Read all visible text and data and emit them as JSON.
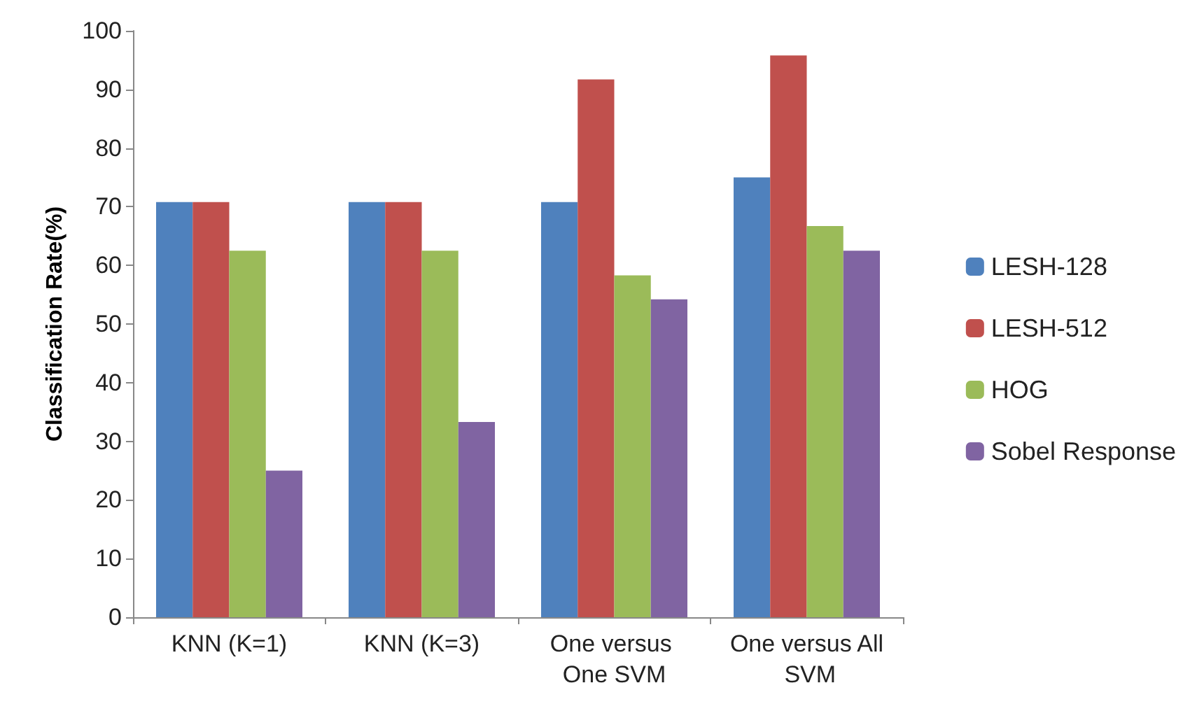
{
  "chart_data": {
    "type": "bar",
    "ylabel": "Classification Rate(%)",
    "categories": [
      "KNN (K=1)",
      "KNN (K=3)",
      "One versus One SVM",
      "One versus All SVM"
    ],
    "series": [
      {
        "name": "LESH-128",
        "color": "#4f81bd",
        "values": [
          70.8,
          70.8,
          70.8,
          75
        ]
      },
      {
        "name": "LESH-512",
        "color": "#c0504d",
        "values": [
          70.8,
          70.8,
          91.7,
          95.8
        ]
      },
      {
        "name": "HOG",
        "color": "#9bbb59",
        "values": [
          62.5,
          62.5,
          58.3,
          66.7
        ]
      },
      {
        "name": "Sobel Response",
        "color": "#8064a2",
        "values": [
          25,
          33.3,
          54.2,
          62.5
        ]
      }
    ],
    "ylim": [
      0,
      100
    ],
    "yticks": [
      0,
      10,
      20,
      30,
      40,
      50,
      60,
      70,
      80,
      90,
      100
    ],
    "grid": false,
    "legend": "right"
  }
}
